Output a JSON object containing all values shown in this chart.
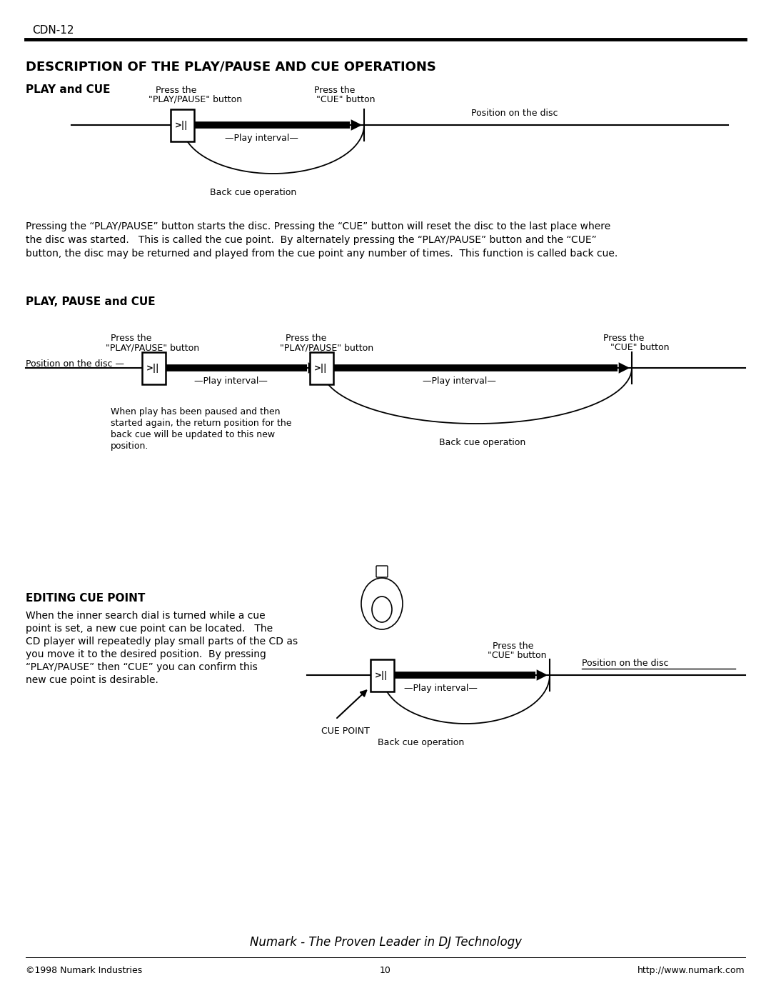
{
  "bg_color": "#ffffff",
  "header_text": "CDN-12",
  "title": "DESCRIPTION OF THE PLAY/PAUSE AND CUE OPERATIONS",
  "section1_title": "PLAY and CUE",
  "section2_title": "PLAY, PAUSE and CUE",
  "section3_title": "EDITING CUE POINT",
  "paragraph1": "Pressing the “PLAY/PAUSE” button starts the disc. Pressing the “CUE” button will reset the disc to the last place where\nthe disc was started.   This is called the cue point.  By alternately pressing the “PLAY/PAUSE” button and the “CUE”\nbutton, the disc may be returned and played from the cue point any number of times.  This function is called back cue.",
  "paragraph2": "When the inner search dial is turned while a cue\npoint is set, a new cue point can be located.   The\nCD player will repeatedly play small parts of the CD as\nyou move it to the desired position.  By pressing\n“PLAY/PAUSE” then “CUE” you can confirm this\nnew cue point is desirable.",
  "footer_left": "©1998 Numark Industries",
  "footer_center": "10",
  "footer_right": "http://www.numark.com",
  "footer_italic": "Numark - The Proven Leader in DJ Technology"
}
